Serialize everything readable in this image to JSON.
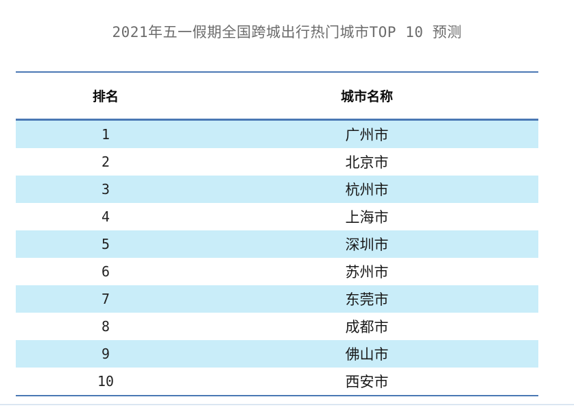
{
  "title": "2021年五一假期全国跨城出行热门城市TOP 10 预测",
  "table": {
    "headers": {
      "rank": "排名",
      "city": "城市名称"
    },
    "rows": [
      {
        "rank": "1",
        "city": "广州市"
      },
      {
        "rank": "2",
        "city": "北京市"
      },
      {
        "rank": "3",
        "city": "杭州市"
      },
      {
        "rank": "4",
        "city": "上海市"
      },
      {
        "rank": "5",
        "city": "深圳市"
      },
      {
        "rank": "6",
        "city": "苏州市"
      },
      {
        "rank": "7",
        "city": "东莞市"
      },
      {
        "rank": "8",
        "city": "成都市"
      },
      {
        "rank": "9",
        "city": "佛山市"
      },
      {
        "rank": "10",
        "city": "西安市"
      }
    ]
  },
  "chart_data": {
    "type": "table",
    "title": "2021年五一假期全国跨城出行热门城市TOP 10 预测",
    "columns": [
      "排名",
      "城市名称"
    ],
    "rows": [
      [
        "1",
        "广州市"
      ],
      [
        "2",
        "北京市"
      ],
      [
        "3",
        "杭州市"
      ],
      [
        "4",
        "上海市"
      ],
      [
        "5",
        "深圳市"
      ],
      [
        "6",
        "苏州市"
      ],
      [
        "7",
        "东莞市"
      ],
      [
        "8",
        "成都市"
      ],
      [
        "9",
        "佛山市"
      ],
      [
        "10",
        "西安市"
      ]
    ],
    "layout": {
      "style": "three-line striped table",
      "striped_rows": "odd",
      "grid": "horizontal rules only"
    }
  },
  "colors": {
    "row_highlight": "#c9edf9",
    "table_border": "#4a78b4",
    "title_text": "#6b6b6b",
    "body_text": "#1a1a1a",
    "page_bottom_line": "#dbe6f2"
  }
}
